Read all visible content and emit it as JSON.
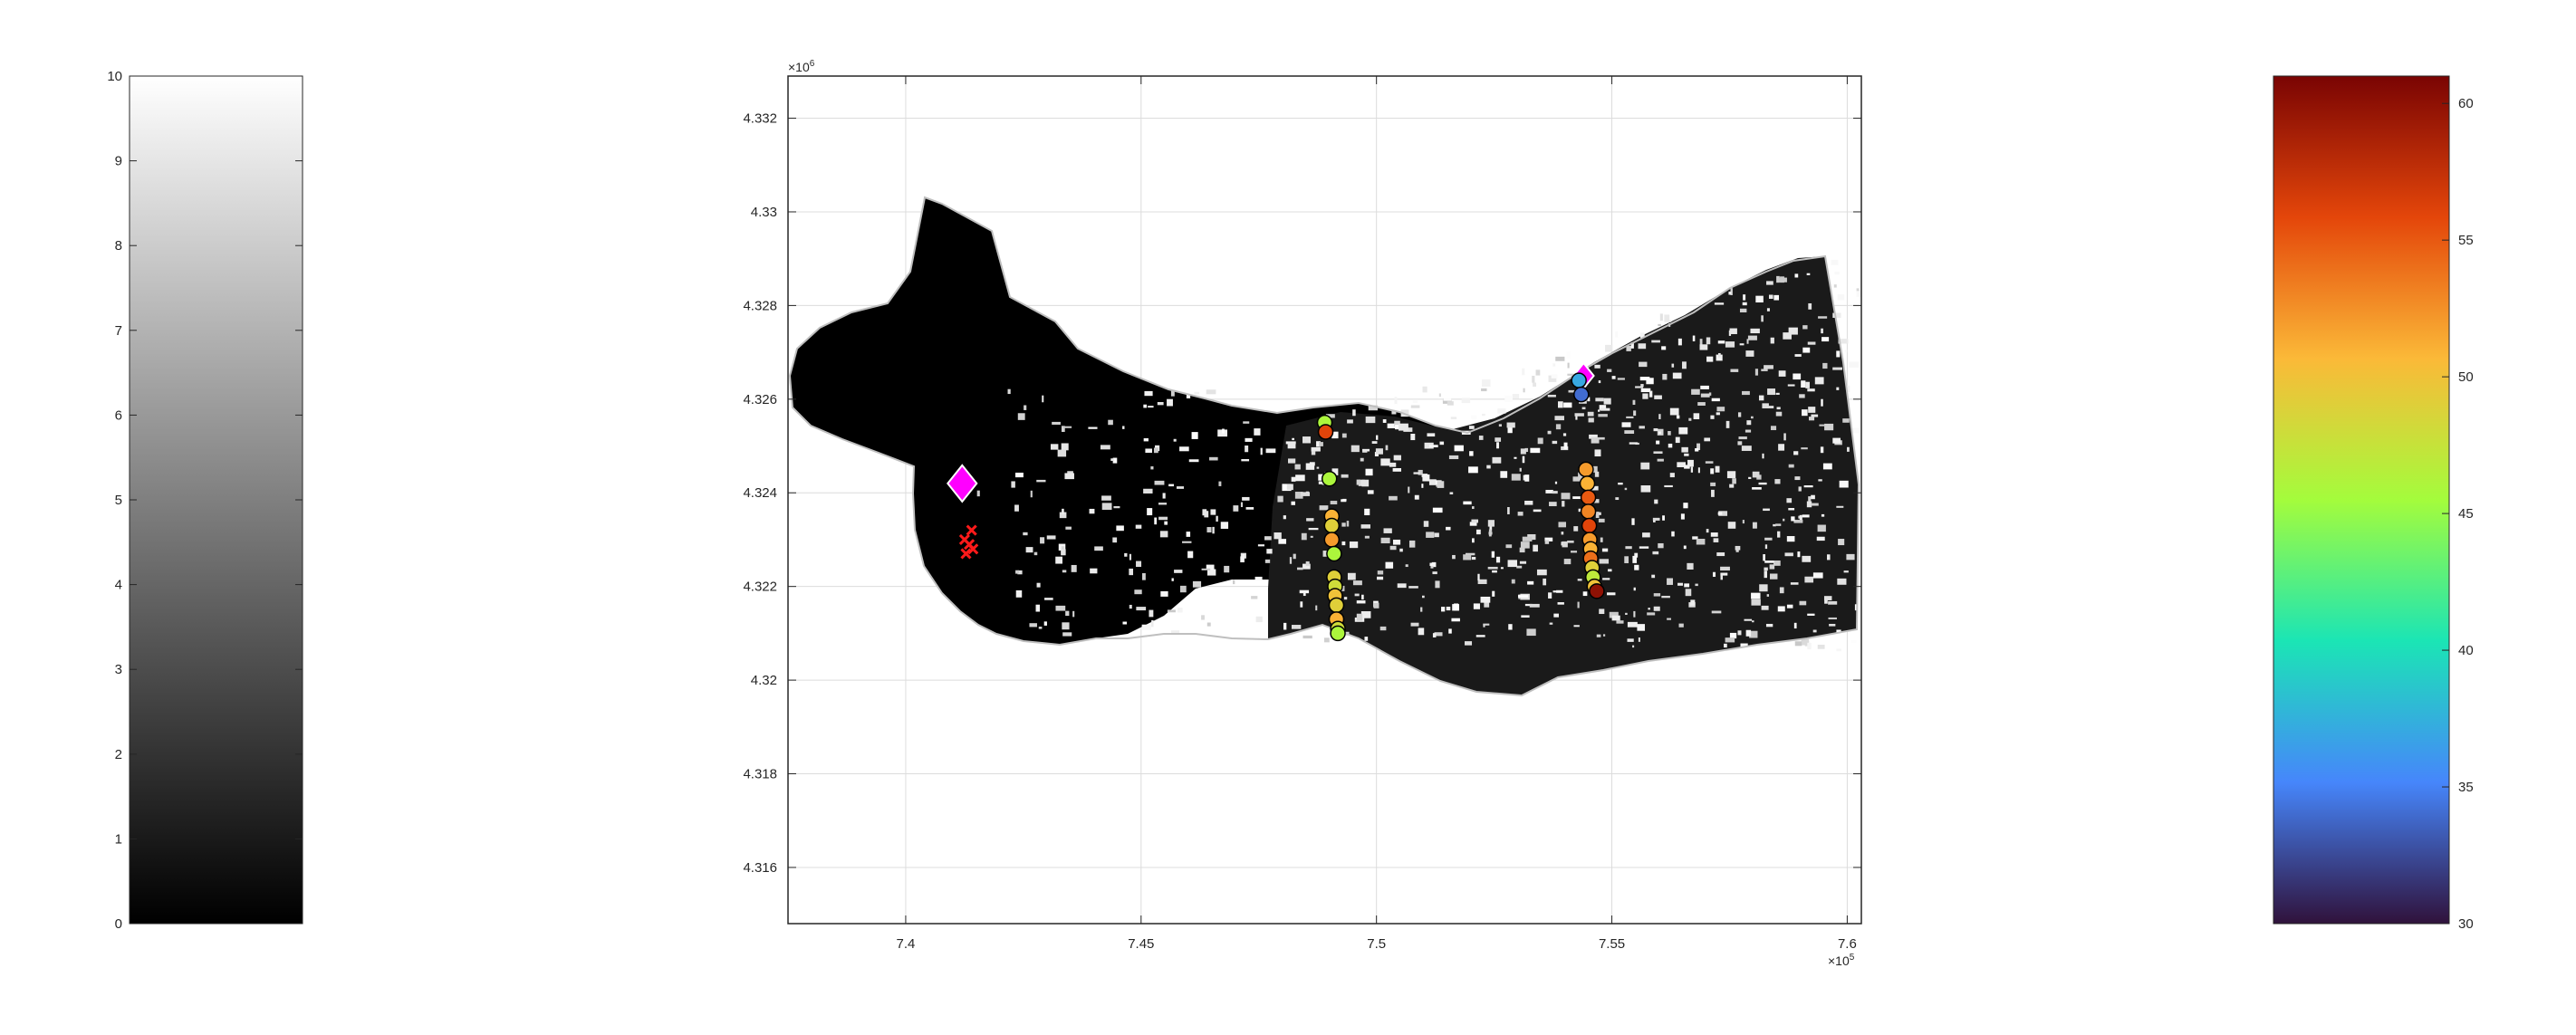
{
  "chart_data": [
    {
      "type": "colorbar",
      "colormap": "gray",
      "colors": [
        "#000000",
        "#ffffff"
      ],
      "range": [
        0,
        10
      ],
      "ticks": [
        "0",
        "1",
        "2",
        "3",
        "4",
        "5",
        "6",
        "7",
        "8",
        "9",
        "10"
      ]
    },
    {
      "type": "scatter",
      "title": "",
      "xlabel": "",
      "ylabel": "",
      "x_exponent": "×10",
      "x_exponent_power": "5",
      "y_exponent": "×10",
      "y_exponent_power": "6",
      "xlim": [
        7.375,
        7.603
      ],
      "ylim": [
        4.3148,
        4.3329
      ],
      "grid": true,
      "x_ticks": [
        "7.4",
        "7.45",
        "7.5",
        "7.55",
        "7.6"
      ],
      "y_ticks": [
        "4.316",
        "4.318",
        "4.32",
        "4.322",
        "4.324",
        "4.326",
        "4.328",
        "4.33",
        "4.332"
      ],
      "background_raster": "grayscale land-cover map (black/white)",
      "markers": {
        "diamonds": [
          {
            "x": 7.412,
            "y": 4.3242,
            "color": "#ff00ff"
          },
          {
            "x": 7.544,
            "y": 4.3265,
            "color": "#ff00ff"
          }
        ],
        "red_crosses": [
          {
            "x": 7.4125,
            "y": 4.323
          },
          {
            "x": 7.4135,
            "y": 4.3229
          },
          {
            "x": 7.414,
            "y": 4.3232
          },
          {
            "x": 7.4128,
            "y": 4.3227
          },
          {
            "x": 7.4143,
            "y": 4.3228
          }
        ],
        "transects": [
          {
            "x": [
              7.489,
              7.4892,
              7.49,
              7.4905,
              7.4905,
              7.4905,
              7.491,
              7.491,
              7.4912,
              7.4912,
              7.4915,
              7.4915,
              7.4918,
              7.4918
            ],
            "y": [
              4.3255,
              4.3253,
              4.3243,
              4.3235,
              4.3233,
              4.323,
              4.3227,
              4.3222,
              4.322,
              4.3218,
              4.3216,
              4.3213,
              4.3211,
              4.321
            ],
            "values": [
              46,
              56,
              46,
              51,
              49,
              52,
              46,
              49,
              48,
              50,
              49,
              51,
              48,
              46
            ]
          },
          {
            "x": [
              7.543,
              7.5435,
              7.5445,
              7.5448,
              7.545,
              7.545,
              7.5452,
              7.5453,
              7.5455,
              7.5455,
              7.5458,
              7.546,
              7.5463,
              7.5468
            ],
            "y": [
              4.3264,
              4.3261,
              4.3245,
              4.3242,
              4.3239,
              4.3236,
              4.3233,
              4.323,
              4.3228,
              4.3226,
              4.3224,
              4.3222,
              4.322,
              4.3219
            ],
            "values": [
              37,
              34,
              52,
              51,
              55,
              53,
              56,
              52,
              51,
              54,
              49,
              47,
              50,
              60
            ]
          }
        ]
      }
    },
    {
      "type": "colorbar",
      "colormap": "turbo",
      "colors": [
        "#30123b",
        "#4686fb",
        "#1be5b5",
        "#a4fc3c",
        "#fbb938",
        "#e4460a",
        "#7a0403"
      ],
      "range": [
        30,
        61
      ],
      "ticks": [
        "30",
        "35",
        "40",
        "45",
        "50",
        "55",
        "60"
      ]
    }
  ]
}
